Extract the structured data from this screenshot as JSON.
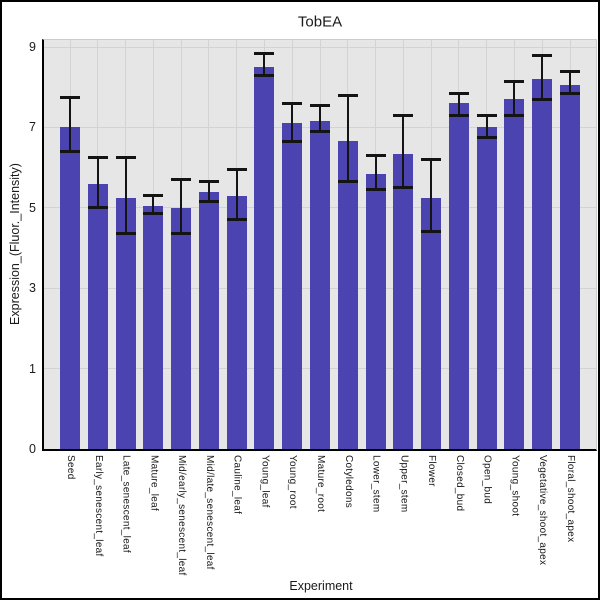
{
  "chart_data": {
    "type": "bar",
    "title": "TobEA",
    "xlabel": "Experiment",
    "ylabel": "Expression_(Fluor._Intensity)",
    "categories": [
      "Seed",
      "Early_senescent_leaf",
      "Late_senescent_leaf",
      "Mature_leaf",
      "Mid/early_senescent_leaf",
      "Mid/late_senescent_leaf",
      "Cauline_leaf",
      "Young_leaf",
      "Young_root",
      "Mature_root",
      "Cotyledons",
      "Lower_stem",
      "Upper_stem",
      "Flower",
      "Closed_bud",
      "Open_bud",
      "Young_shoot",
      "Vegetative_shoot_apex",
      "Floral_shoot_apex"
    ],
    "values": [
      7.0,
      5.6,
      5.25,
      5.05,
      5.0,
      5.4,
      5.3,
      8.5,
      7.1,
      7.15,
      6.65,
      5.85,
      6.35,
      5.25,
      7.6,
      7.0,
      7.7,
      8.2,
      8.05
    ],
    "error_low": [
      6.4,
      5.0,
      4.35,
      4.85,
      4.35,
      5.15,
      4.7,
      8.3,
      6.65,
      6.9,
      5.65,
      5.45,
      5.5,
      4.4,
      7.3,
      6.75,
      7.3,
      7.7,
      7.85
    ],
    "error_high": [
      7.75,
      6.25,
      6.25,
      5.3,
      5.7,
      5.65,
      5.95,
      8.85,
      7.6,
      7.55,
      7.8,
      6.3,
      7.3,
      6.2,
      7.85,
      7.3,
      8.15,
      8.8,
      8.4
    ],
    "yticks": [
      0,
      1,
      3,
      5,
      7,
      9
    ],
    "ylim": [
      0,
      9.2
    ],
    "grid": true,
    "legend": false,
    "bar_color": "#4b44b0",
    "error_color": "#141414",
    "panel_bg": "#e6e6e6",
    "grid_color": "#d3d3d3",
    "text_color": "#1a1a1a"
  }
}
